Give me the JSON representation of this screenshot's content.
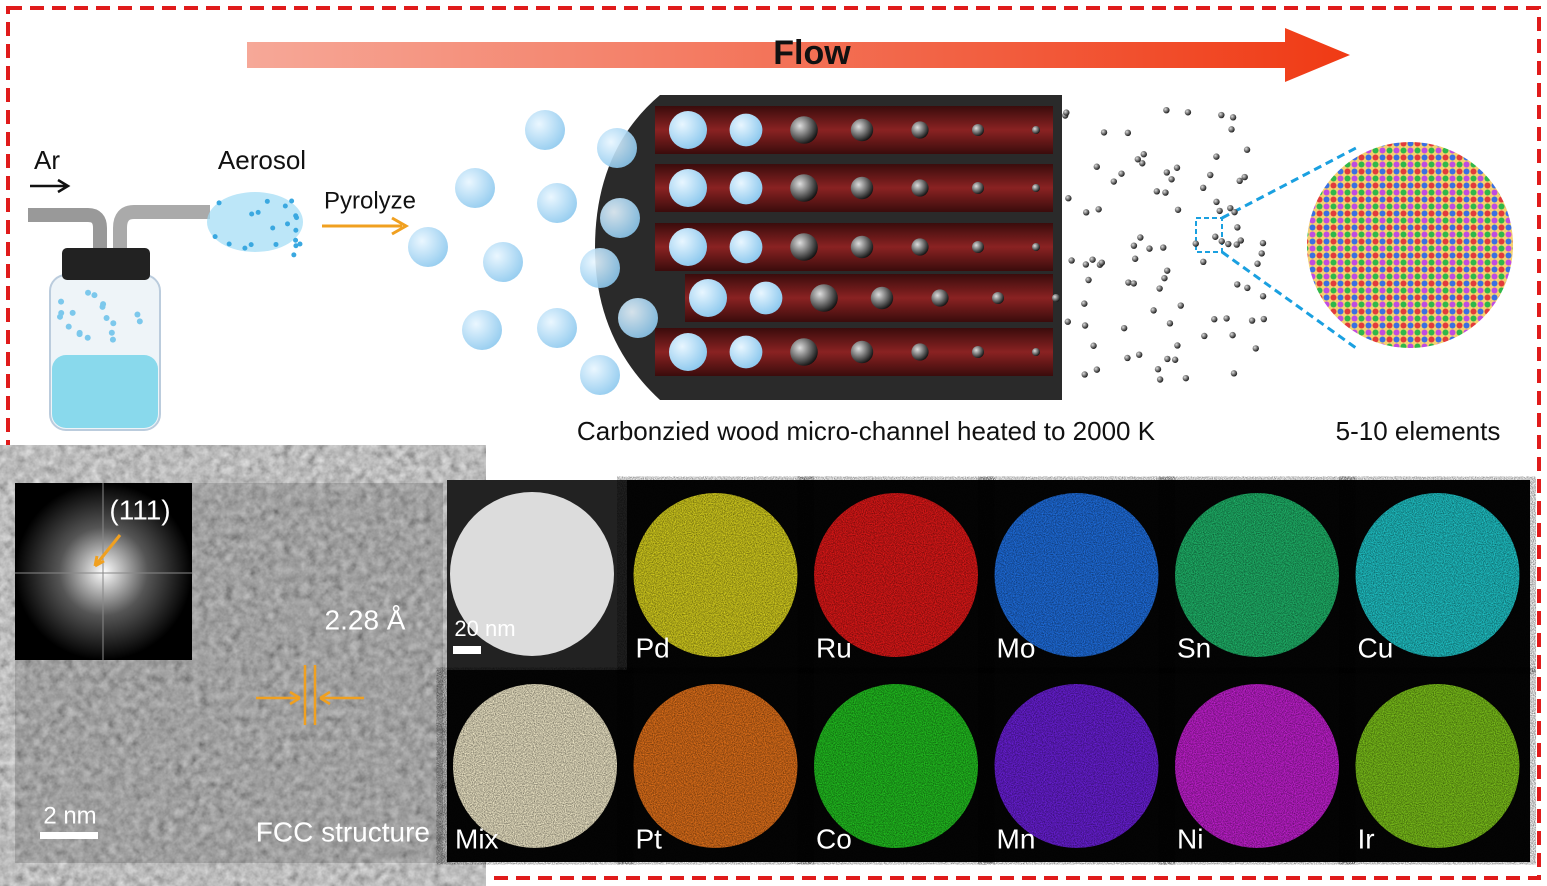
{
  "schematic": {
    "flow_label": "Flow",
    "gas": "Ar",
    "aerosol": "Aerosol",
    "step": "Pyrolyze",
    "channel_caption": "Carbonzied wood micro-channel heated to 2000 K",
    "particle_caption": "5-10 elements"
  },
  "hrtem": {
    "fft_index": "(111)",
    "d_spacing": "2.28 Å",
    "scale_bar": "2 nm",
    "structure": "FCC structure"
  },
  "eds_maps": {
    "scale_bar": "20 nm",
    "tiles": [
      {
        "label": "Pd",
        "color": "#d6cf1e"
      },
      {
        "label": "Ru",
        "color": "#e01818"
      },
      {
        "label": "Mo",
        "color": "#1f6fe0"
      },
      {
        "label": "Sn",
        "color": "#1fb56a"
      },
      {
        "label": "Cu",
        "color": "#1fc4c8"
      },
      {
        "label": "Mix",
        "color": "#f0e8c8"
      },
      {
        "label": "Pt",
        "color": "#e0701a"
      },
      {
        "label": "Co",
        "color": "#22c020"
      },
      {
        "label": "Mn",
        "color": "#6a1fd8"
      },
      {
        "label": "Ni",
        "color": "#c21fd0"
      },
      {
        "label": "Ir",
        "color": "#7cc21a"
      }
    ]
  }
}
